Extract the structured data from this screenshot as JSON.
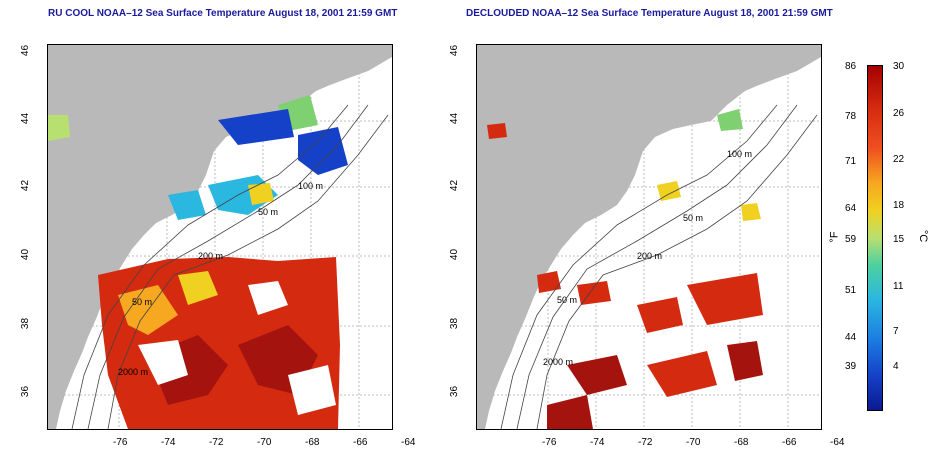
{
  "maps": [
    {
      "title": "RU COOL NOAA–12 Sea Surface Temperature August 18, 2001 21:59 GMT"
    },
    {
      "title": "DECLOUDED NOAA–12 Sea Surface Temperature August 18, 2001 21:59 GMT"
    }
  ],
  "axes": {
    "lon_ticks": [
      "-76",
      "-74",
      "-72",
      "-70",
      "-68",
      "-66",
      "-64"
    ],
    "lat_ticks": [
      "46",
      "44",
      "42",
      "40",
      "38",
      "36"
    ]
  },
  "contour_labels": [
    "100 m",
    "50 m",
    "200 m",
    "50 m",
    "2000 m"
  ],
  "colorbar": {
    "fahrenheit_ticks": [
      "86",
      "78",
      "71",
      "64",
      "59",
      "51",
      "44",
      "39"
    ],
    "celsius_ticks": [
      "30",
      "26",
      "22",
      "18",
      "15",
      "11",
      "7",
      "4"
    ],
    "left_unit": "°F",
    "right_unit": "°C"
  },
  "colors": {
    "land": "#b9b9b9",
    "title": "#1a1a9c",
    "warm": "#d42a10",
    "hot": "#a5130f",
    "cool": "#2ab7e0",
    "cold": "#1540c8",
    "mid": "#f0d020"
  }
}
